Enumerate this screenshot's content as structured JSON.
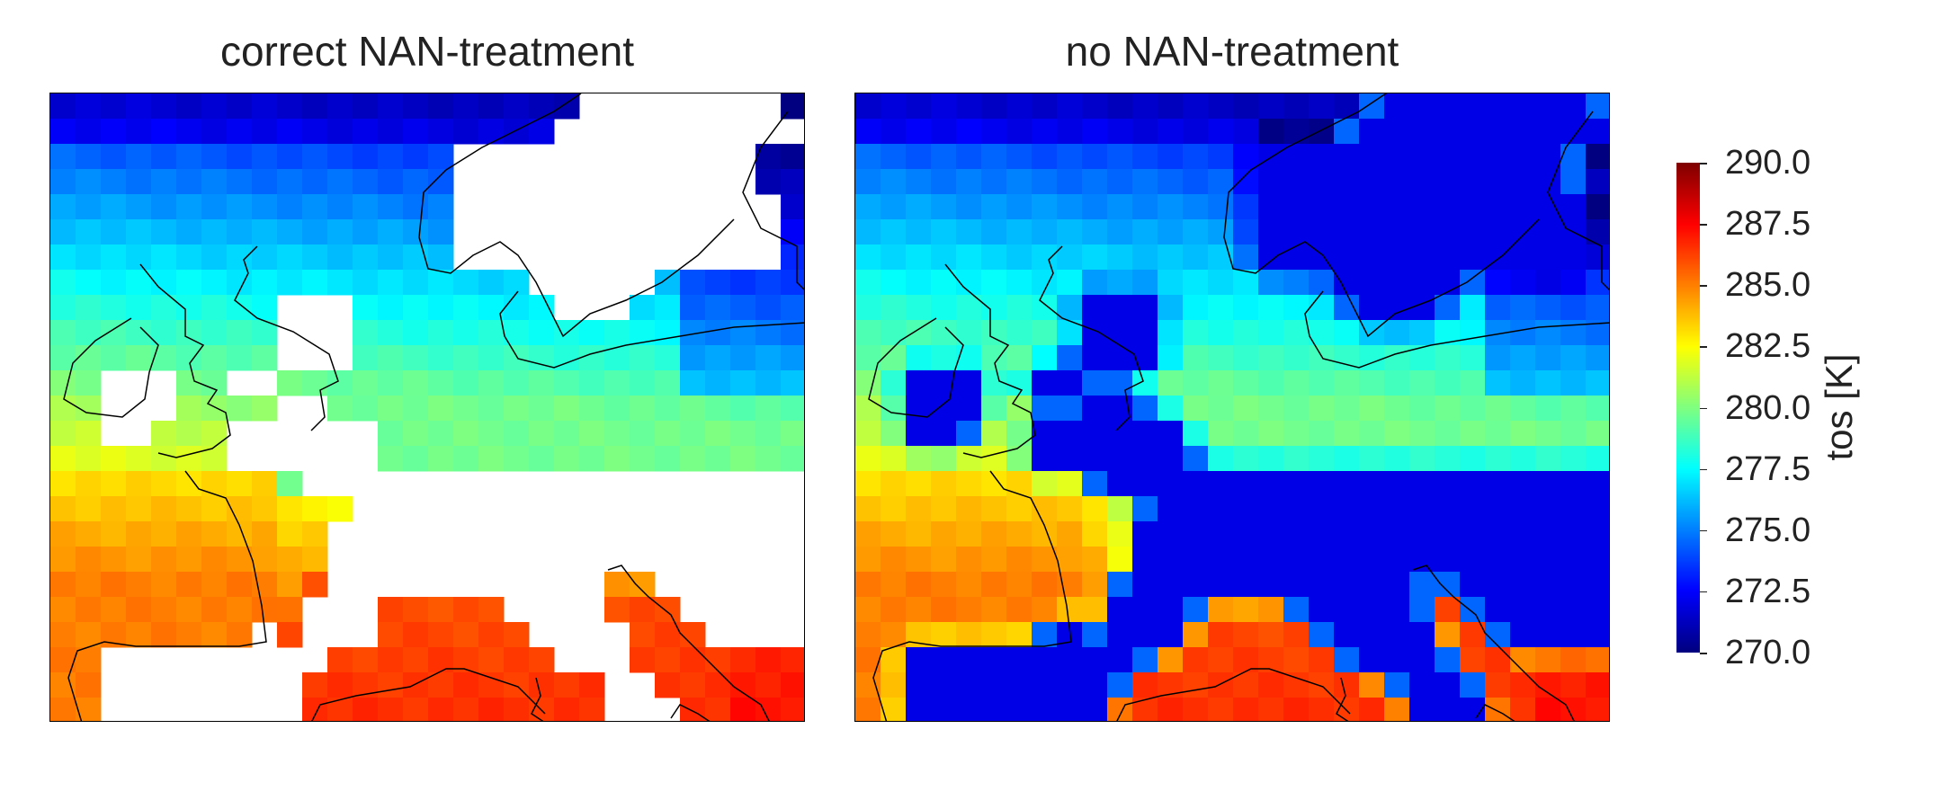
{
  "panels": [
    {
      "title": "correct NAN-treatment",
      "mode": "masked"
    },
    {
      "title": "no NAN-treatment",
      "mode": "filled"
    }
  ],
  "colorbar": {
    "label": "tos [K]",
    "ticks": [
      "290.0",
      "287.5",
      "285.0",
      "282.5",
      "280.0",
      "277.5",
      "275.0",
      "272.5",
      "270.0"
    ],
    "min": 270.0,
    "max": 290.0,
    "colormap": "jet"
  },
  "colors": {
    "land_masked": "#ffffff",
    "coastline": "#000000",
    "frame": "#000000"
  }
}
